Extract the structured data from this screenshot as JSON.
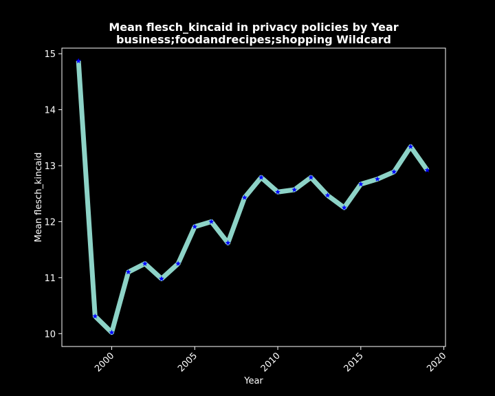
{
  "chart_data": {
    "type": "line",
    "title": "Mean flesch_kincaid in privacy policies by Year",
    "subtitle": "business;foodandrecipes;shopping Wildcard",
    "xlabel": "Year",
    "ylabel": "Mean flesch_kincaid",
    "xlim": [
      1997,
      2020.1
    ],
    "ylim": [
      9.77,
      15.1
    ],
    "xticks": [
      2000,
      2005,
      2010,
      2015,
      2020
    ],
    "yticks": [
      10,
      11,
      12,
      13,
      14,
      15
    ],
    "grid": false,
    "line_color": "#8dd3c7",
    "marker_color": "#0000ff",
    "marker": "star",
    "series": [
      {
        "x": [
          1998,
          1999,
          2000,
          2001,
          2002,
          2003,
          2004,
          2005,
          2006,
          2007,
          2008,
          2009,
          2010,
          2011,
          2012,
          2013,
          2014,
          2015,
          2016,
          2017,
          2018,
          2019
        ],
        "values": [
          14.87,
          10.31,
          10.02,
          11.1,
          11.25,
          10.98,
          11.25,
          11.91,
          12.0,
          11.62,
          12.43,
          12.79,
          12.53,
          12.57,
          12.79,
          12.47,
          12.25,
          12.67,
          12.76,
          12.89,
          13.34,
          12.92
        ]
      }
    ]
  },
  "colors": {
    "background": "#000000",
    "axes": "#ffffff",
    "text": "#ffffff"
  }
}
